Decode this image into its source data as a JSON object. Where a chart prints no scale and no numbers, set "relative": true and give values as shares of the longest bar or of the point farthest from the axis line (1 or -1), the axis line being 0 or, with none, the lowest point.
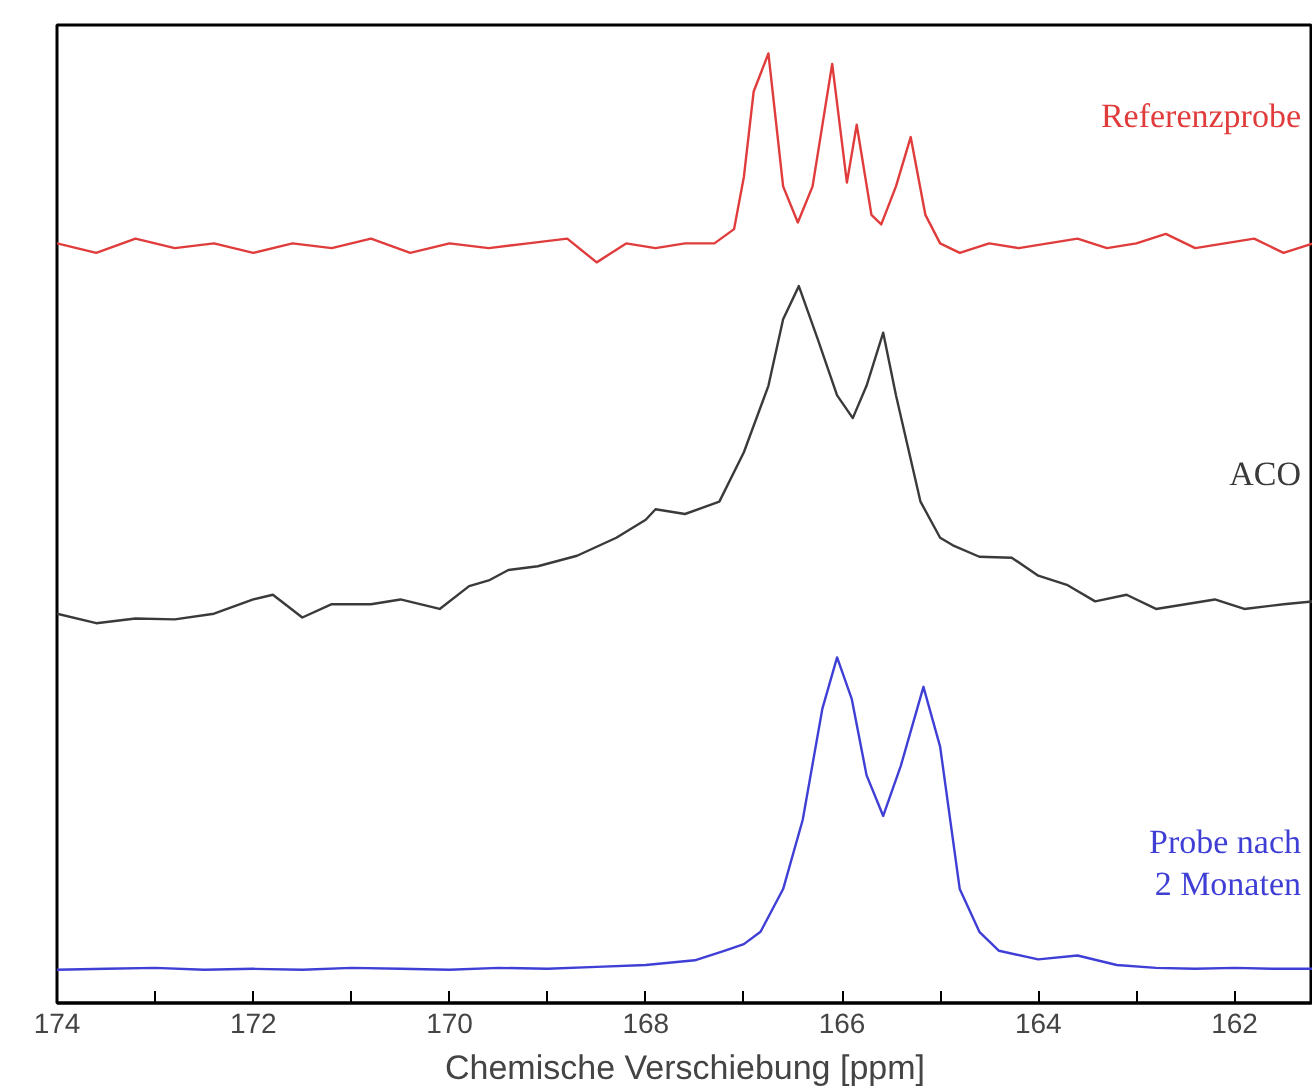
{
  "chart_data": {
    "type": "line",
    "relative": true,
    "xlabel": "Chemische Verschiebung [ppm]",
    "xlim": [
      174,
      161.2
    ],
    "xticks": [
      174,
      {
        "value": 173,
        "label": null
      },
      172,
      {
        "value": 171,
        "label": null
      },
      170,
      {
        "value": 169,
        "label": null
      },
      168,
      {
        "value": 167,
        "label": null
      },
      166,
      {
        "value": 165,
        "label": null
      },
      164,
      {
        "value": 163,
        "label": null
      },
      162
    ],
    "grid": false,
    "marker": "none",
    "line_style": "solid",
    "series": [
      {
        "name": "Referenzprobe",
        "color": "#e03c3c",
        "x": [
          174,
          173.6,
          173.2,
          172.8,
          172.4,
          172,
          171.6,
          171.2,
          170.8,
          170.4,
          170,
          169.6,
          169.2,
          168.8,
          168.5,
          168.2,
          167.9,
          167.6,
          167.3,
          167.1,
          167,
          166.9,
          166.75,
          166.6,
          166.45,
          166.3,
          166.1,
          165.95,
          165.85,
          165.7,
          165.6,
          165.45,
          165.3,
          165.15,
          165,
          164.8,
          164.5,
          164.2,
          163.9,
          163.6,
          163.3,
          163,
          162.7,
          162.4,
          162.1,
          161.8,
          161.5,
          161.2
        ],
        "values": [
          0.8,
          0.79,
          0.805,
          0.795,
          0.8,
          0.79,
          0.8,
          0.795,
          0.805,
          0.79,
          0.8,
          0.795,
          0.8,
          0.805,
          0.78,
          0.8,
          0.795,
          0.8,
          0.8,
          0.815,
          0.87,
          0.96,
          1.0,
          0.86,
          0.822,
          0.86,
          0.989,
          0.864,
          0.925,
          0.83,
          0.82,
          0.86,
          0.912,
          0.83,
          0.8,
          0.79,
          0.8,
          0.795,
          0.8,
          0.805,
          0.795,
          0.8,
          0.81,
          0.795,
          0.8,
          0.805,
          0.79,
          0.8
        ]
      },
      {
        "name": "ACO",
        "color": "#3a3a3a",
        "x": [
          174,
          173.6,
          173.2,
          172.8,
          172.4,
          172,
          171.8,
          171.5,
          171.2,
          170.8,
          170.5,
          170.1,
          169.8,
          169.6,
          169.4,
          169.1,
          168.7,
          168.3,
          168,
          167.9,
          167.6,
          167.25,
          167,
          166.75,
          166.6,
          166.44,
          166.25,
          166.05,
          165.89,
          165.75,
          165.58,
          165.45,
          165.2,
          165.0,
          164.87,
          164.6,
          164.27,
          164.0,
          163.7,
          163.42,
          163.1,
          162.8,
          162.5,
          162.2,
          161.9,
          161.5,
          161.2
        ],
        "values": [
          0.41,
          0.4,
          0.405,
          0.404,
          0.41,
          0.425,
          0.43,
          0.406,
          0.42,
          0.42,
          0.425,
          0.415,
          0.439,
          0.445,
          0.456,
          0.46,
          0.471,
          0.49,
          0.509,
          0.52,
          0.515,
          0.528,
          0.58,
          0.65,
          0.72,
          0.755,
          0.7,
          0.64,
          0.616,
          0.65,
          0.706,
          0.64,
          0.528,
          0.49,
          0.482,
          0.47,
          0.469,
          0.45,
          0.44,
          0.423,
          0.43,
          0.415,
          0.42,
          0.425,
          0.415,
          0.42,
          0.423
        ]
      },
      {
        "name": "Probe nach\n2 Monaten",
        "color": "#3f3fd6",
        "x": [
          174,
          173.5,
          173,
          172.5,
          172,
          171.5,
          171,
          170.5,
          170,
          169.5,
          169,
          168.5,
          168,
          167.5,
          167.2,
          167,
          166.83,
          166.6,
          166.4,
          166.2,
          166.05,
          165.9,
          165.75,
          165.58,
          165.4,
          165.17,
          165.0,
          164.8,
          164.6,
          164.4,
          164.0,
          163.6,
          163.2,
          162.8,
          162.4,
          162,
          161.6,
          161.2
        ],
        "values": [
          0.035,
          0.036,
          0.037,
          0.035,
          0.036,
          0.035,
          0.037,
          0.036,
          0.035,
          0.037,
          0.036,
          0.038,
          0.04,
          0.045,
          0.055,
          0.062,
          0.075,
          0.12,
          0.193,
          0.31,
          0.364,
          0.32,
          0.24,
          0.197,
          0.25,
          0.333,
          0.27,
          0.12,
          0.075,
          0.055,
          0.046,
          0.05,
          0.04,
          0.037,
          0.036,
          0.037,
          0.036,
          0.036
        ]
      }
    ]
  }
}
